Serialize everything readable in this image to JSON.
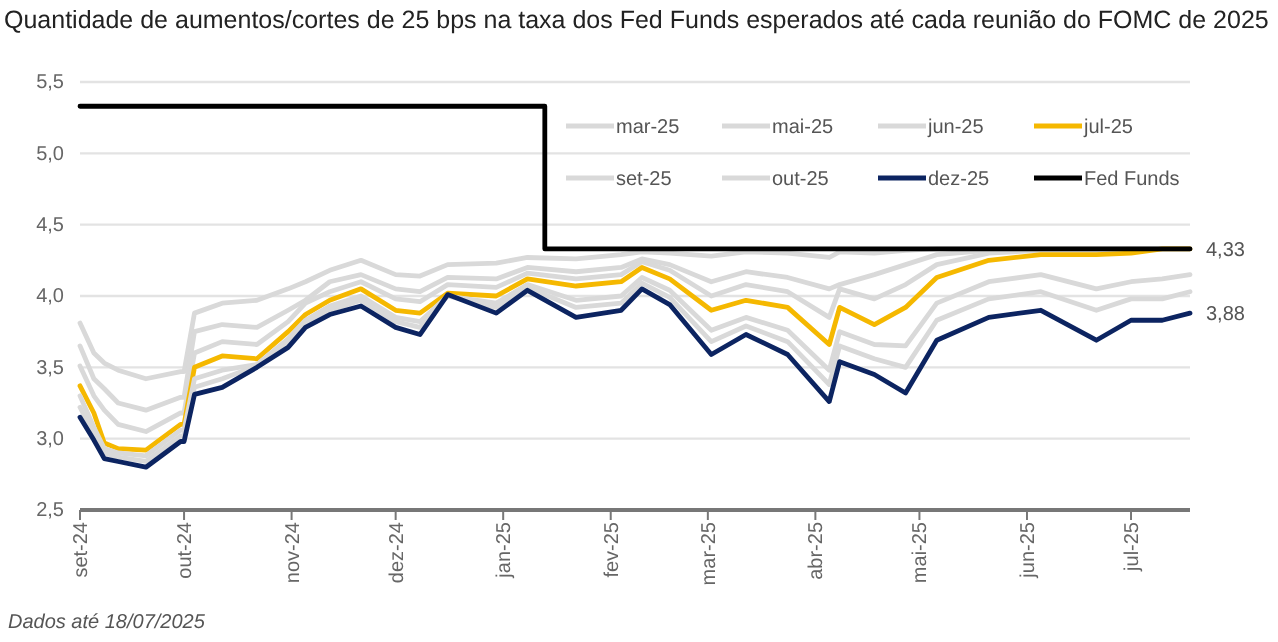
{
  "chart_data": {
    "type": "line",
    "title": "Quantidade de aumentos/cortes de 25 bps na taxa dos Fed Funds esperados até cada reunião do FOMC de 2025",
    "x": [
      "2024-09-01",
      "2024-09-05",
      "2024-09-08",
      "2024-09-12",
      "2024-09-20",
      "2024-09-30",
      "2024-10-01",
      "2024-10-04",
      "2024-10-12",
      "2024-10-22",
      "2024-10-31",
      "2024-11-05",
      "2024-11-12",
      "2024-11-21",
      "2024-12-01",
      "2024-12-08",
      "2024-12-16",
      "2024-12-30",
      "2025-01-08",
      "2025-01-22",
      "2025-02-04",
      "2025-02-10",
      "2025-02-18",
      "2025-03-02",
      "2025-03-12",
      "2025-03-24",
      "2025-04-05",
      "2025-04-08",
      "2025-04-18",
      "2025-04-27",
      "2025-05-06",
      "2025-05-21",
      "2025-06-05",
      "2025-06-21",
      "2025-07-01",
      "2025-07-10",
      "2025-07-18"
    ],
    "series": [
      {
        "name": "mar-25",
        "color": "#d9d9d9",
        "values": [
          3.81,
          3.6,
          3.53,
          3.48,
          3.42,
          3.47,
          3.47,
          3.88,
          3.95,
          3.97,
          4.05,
          4.1,
          4.18,
          4.25,
          4.15,
          4.14,
          4.22,
          4.23,
          4.27,
          4.26,
          4.29,
          4.31,
          4.3,
          4.28,
          4.31,
          4.3,
          4.27,
          4.31,
          4.3,
          4.32,
          4.33,
          4.33,
          4.33,
          4.33,
          4.33,
          4.33,
          4.33
        ]
      },
      {
        "name": "mai-25",
        "color": "#d9d9d9",
        "values": [
          3.65,
          3.42,
          3.35,
          3.25,
          3.2,
          3.29,
          3.29,
          3.75,
          3.8,
          3.78,
          3.9,
          3.97,
          4.1,
          4.15,
          4.05,
          4.03,
          4.13,
          4.12,
          4.2,
          4.17,
          4.2,
          4.26,
          4.22,
          4.1,
          4.17,
          4.13,
          4.05,
          4.08,
          4.15,
          4.22,
          4.29,
          4.32,
          4.33,
          4.33,
          4.33,
          4.33,
          4.33
        ]
      },
      {
        "name": "jun-25",
        "color": "#d9d9d9",
        "values": [
          3.51,
          3.3,
          3.2,
          3.1,
          3.05,
          3.18,
          3.18,
          3.6,
          3.68,
          3.66,
          3.82,
          3.95,
          4.03,
          4.1,
          3.98,
          3.96,
          4.08,
          4.06,
          4.16,
          4.12,
          4.15,
          4.24,
          4.18,
          4.0,
          4.08,
          4.03,
          3.85,
          4.05,
          3.98,
          4.08,
          4.22,
          4.3,
          4.32,
          4.32,
          4.33,
          4.33,
          4.33
        ]
      },
      {
        "name": "jul-25",
        "color": "#f5b800",
        "values": [
          3.37,
          3.18,
          2.97,
          2.93,
          2.92,
          3.1,
          3.1,
          3.5,
          3.58,
          3.56,
          3.75,
          3.87,
          3.97,
          4.05,
          3.9,
          3.88,
          4.02,
          4.0,
          4.12,
          4.07,
          4.1,
          4.2,
          4.12,
          3.9,
          3.97,
          3.92,
          3.66,
          3.92,
          3.8,
          3.92,
          4.13,
          4.25,
          4.29,
          4.29,
          4.3,
          4.33,
          4.33
        ]
      },
      {
        "name": "set-25",
        "color": "#d9d9d9",
        "values": [
          3.3,
          3.08,
          2.93,
          2.9,
          2.88,
          3.06,
          3.06,
          3.42,
          3.48,
          3.52,
          3.7,
          3.83,
          3.93,
          4.0,
          3.85,
          3.82,
          4.0,
          3.95,
          4.08,
          3.97,
          4.0,
          4.13,
          4.04,
          3.76,
          3.85,
          3.76,
          3.48,
          3.75,
          3.66,
          3.65,
          3.95,
          4.1,
          4.15,
          4.05,
          4.1,
          4.12,
          4.15
        ]
      },
      {
        "name": "out-25",
        "color": "#d9d9d9",
        "values": [
          3.22,
          3.03,
          2.9,
          2.87,
          2.84,
          3.02,
          3.02,
          3.36,
          3.42,
          3.51,
          3.67,
          3.8,
          3.9,
          3.97,
          3.82,
          3.78,
          4.0,
          3.92,
          4.06,
          3.92,
          3.95,
          4.09,
          3.99,
          3.68,
          3.79,
          3.68,
          3.38,
          3.65,
          3.56,
          3.5,
          3.83,
          3.98,
          4.03,
          3.9,
          3.98,
          3.98,
          4.03
        ]
      },
      {
        "name": "dez-25",
        "color": "#0c2461",
        "values": [
          3.15,
          2.99,
          2.86,
          2.84,
          2.8,
          2.98,
          2.98,
          3.31,
          3.36,
          3.5,
          3.64,
          3.78,
          3.87,
          3.93,
          3.78,
          3.73,
          4.01,
          3.88,
          4.04,
          3.85,
          3.9,
          4.05,
          3.94,
          3.59,
          3.73,
          3.59,
          3.26,
          3.54,
          3.45,
          3.32,
          3.69,
          3.85,
          3.9,
          3.69,
          3.83,
          3.83,
          3.88
        ]
      },
      {
        "name": "Fed Funds",
        "type": "step",
        "color": "#000000",
        "x": [
          "2024-09-01",
          "2025-01-13",
          "2025-07-18"
        ],
        "values": [
          5.33,
          4.33,
          4.33
        ]
      }
    ],
    "xlim": [
      "2024-09-01",
      "2025-07-18"
    ],
    "xticks": [
      {
        "value": "2024-09-01",
        "label": "set-24"
      },
      {
        "value": "2024-10-01",
        "label": "out-24"
      },
      {
        "value": "2024-11-01",
        "label": "nov-24"
      },
      {
        "value": "2024-12-01",
        "label": "dez-24"
      },
      {
        "value": "2025-01-01",
        "label": "jan-25"
      },
      {
        "value": "2025-02-01",
        "label": "fev-25"
      },
      {
        "value": "2025-03-01",
        "label": "mar-25"
      },
      {
        "value": "2025-04-01",
        "label": "abr-25"
      },
      {
        "value": "2025-05-01",
        "label": "mai-25"
      },
      {
        "value": "2025-06-01",
        "label": "jun-25"
      },
      {
        "value": "2025-07-01",
        "label": "jul-25"
      }
    ],
    "ylim": [
      2.5,
      5.5
    ],
    "yticks": [
      {
        "value": 2.5,
        "label": "2,5"
      },
      {
        "value": 3,
        "label": "3,0"
      },
      {
        "value": 3.5,
        "label": "3,5"
      },
      {
        "value": 4,
        "label": "4,0"
      },
      {
        "value": 4.5,
        "label": "4,5"
      },
      {
        "value": 5,
        "label": "5,0"
      },
      {
        "value": 5.5,
        "label": "5,5"
      }
    ],
    "grid": "y",
    "legend": "top right",
    "annotations": [
      {
        "text": "4,33",
        "x": "2025-07-18",
        "y": 4.33
      },
      {
        "text": "3,88",
        "x": "2025-07-18",
        "y": 3.88
      },
      "Dados até 18/07/2025"
    ]
  }
}
